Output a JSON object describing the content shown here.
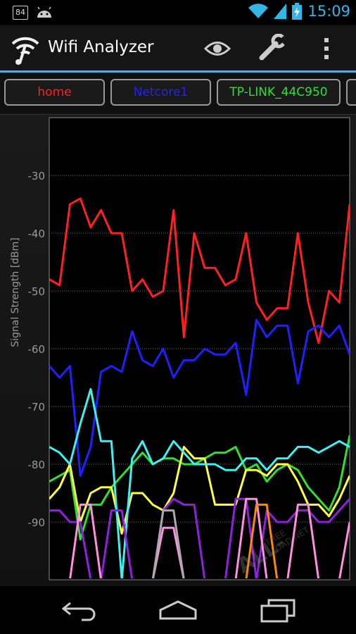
{
  "status_bar": {
    "notification_badge": "84",
    "time": "15:09",
    "icons": [
      "notification-84-icon",
      "android-icon",
      "wifi-signal-icon",
      "cell-signal-icon",
      "battery-charging-icon"
    ]
  },
  "action_bar": {
    "title": "Wifi Analyzer",
    "icons": [
      "wifi-logo-icon",
      "eye-icon",
      "wrench-icon",
      "overflow-menu-icon"
    ]
  },
  "tabs": [
    {
      "label": "home",
      "color": "#ff2020"
    },
    {
      "label": "Netcore1",
      "color": "#2020ff"
    },
    {
      "label": "TP-LINK_44C950",
      "color": "#30e030"
    },
    {
      "label": "",
      "color": "#ffff40"
    }
  ],
  "watermark": {
    "line1": "ALL-",
    "line2": "FREE",
    "line3": "LOAD.NET"
  },
  "chart_data": {
    "type": "line",
    "ylabel": "Signal Strength [dBm]",
    "ylim": [
      -100,
      -20
    ],
    "yticks": [
      "-30",
      "-40",
      "-50",
      "-60",
      "-70",
      "-80",
      "-90"
    ],
    "grid": true,
    "series": [
      {
        "name": "home",
        "color": "#ff2020",
        "values": [
          -48,
          -49,
          -35,
          -34,
          -39,
          -36,
          -40,
          -40,
          -50,
          -48,
          -51,
          -50,
          -36,
          -58,
          -40,
          -46,
          -46,
          -49,
          -48,
          -40,
          -52,
          -55,
          -53,
          -53,
          -40,
          -52,
          -59,
          -50,
          -52,
          -35
        ]
      },
      {
        "name": "Netcore1",
        "color": "#2020ff",
        "values": [
          -63,
          -65,
          -63,
          -82,
          -77,
          -64,
          -63,
          -64,
          -57,
          -62,
          -63,
          -60,
          -65,
          -62,
          -62,
          -60,
          -61,
          -61,
          -59,
          -68,
          -55,
          -58,
          -56,
          -56,
          -66,
          -57,
          -56,
          -58,
          -56,
          -61
        ]
      },
      {
        "name": "TP-LINK_44C950",
        "color": "#30e030",
        "values": [
          -83,
          -82,
          -81,
          -93,
          -87,
          -87,
          -84,
          -82,
          -80,
          -78,
          -80,
          -79,
          -79,
          -80,
          -80,
          -79,
          -78,
          -78,
          -77,
          -81,
          -80,
          -83,
          -81,
          -80,
          -81,
          -84,
          -86,
          -88,
          -84,
          -75
        ]
      },
      {
        "name": "",
        "color": "#ffff40",
        "values": [
          -86,
          -84,
          -80,
          -90,
          -85,
          -84,
          -84,
          -92,
          -85,
          -85,
          -87,
          -88,
          -85,
          -77,
          -79,
          -79,
          -87,
          -87,
          -87,
          -81,
          -81,
          -82,
          -80,
          -80,
          -83,
          -87,
          -87,
          -89,
          -86,
          -82
        ]
      },
      {
        "name": "",
        "color": "#40f0f0",
        "values": [
          -77,
          -78,
          -80,
          -73,
          -67,
          -76,
          -76,
          -100,
          -79,
          -76,
          -80,
          -79,
          -76,
          -78,
          -80,
          -80,
          -80,
          -81,
          -81,
          -79,
          -79,
          -81,
          -79,
          -79,
          -77,
          -77,
          -78,
          -77,
          -76,
          -77
        ]
      },
      {
        "name": "",
        "color": "#9020e0",
        "values": [
          -88,
          -88,
          -90,
          -90,
          -100,
          -100,
          -88,
          -88,
          -100,
          -100,
          -100,
          -88,
          -86,
          -87,
          -87,
          -100,
          -100,
          -100,
          -86,
          -86,
          -100,
          -88,
          -90,
          -90,
          -88,
          -88,
          -90,
          -90,
          -88,
          -86
        ]
      },
      {
        "name": "",
        "color": "#ff90e0",
        "values": [
          -100,
          -100,
          -100,
          -87,
          -87,
          -100,
          -100,
          -100,
          -100,
          -100,
          -100,
          -91,
          -91,
          -100,
          -100,
          -100,
          -100,
          -100,
          -100,
          -86,
          -86,
          -100,
          -100,
          -100,
          -87,
          -87,
          -100,
          -100,
          -100,
          -90
        ]
      },
      {
        "name": "",
        "color": "#ff8800",
        "values": [
          -100,
          -100,
          -100,
          -100,
          -100,
          -100,
          -100,
          -100,
          -100,
          -100,
          -100,
          -100,
          -100,
          -100,
          -100,
          -100,
          -100,
          -100,
          -100,
          -100,
          -87,
          -87,
          -100,
          -100,
          -100,
          -100,
          -100,
          -100,
          -100,
          -100
        ]
      },
      {
        "name": "",
        "color": "#aaaaaa",
        "values": [
          -100,
          -100,
          -100,
          -100,
          -100,
          -100,
          -100,
          -100,
          -100,
          -100,
          -100,
          -88,
          -88,
          -100,
          -100,
          -100,
          -100,
          -100,
          -100,
          -100,
          -100,
          -100,
          -100,
          -100,
          -100,
          -100,
          -100,
          -100,
          -100,
          -100
        ]
      }
    ]
  }
}
